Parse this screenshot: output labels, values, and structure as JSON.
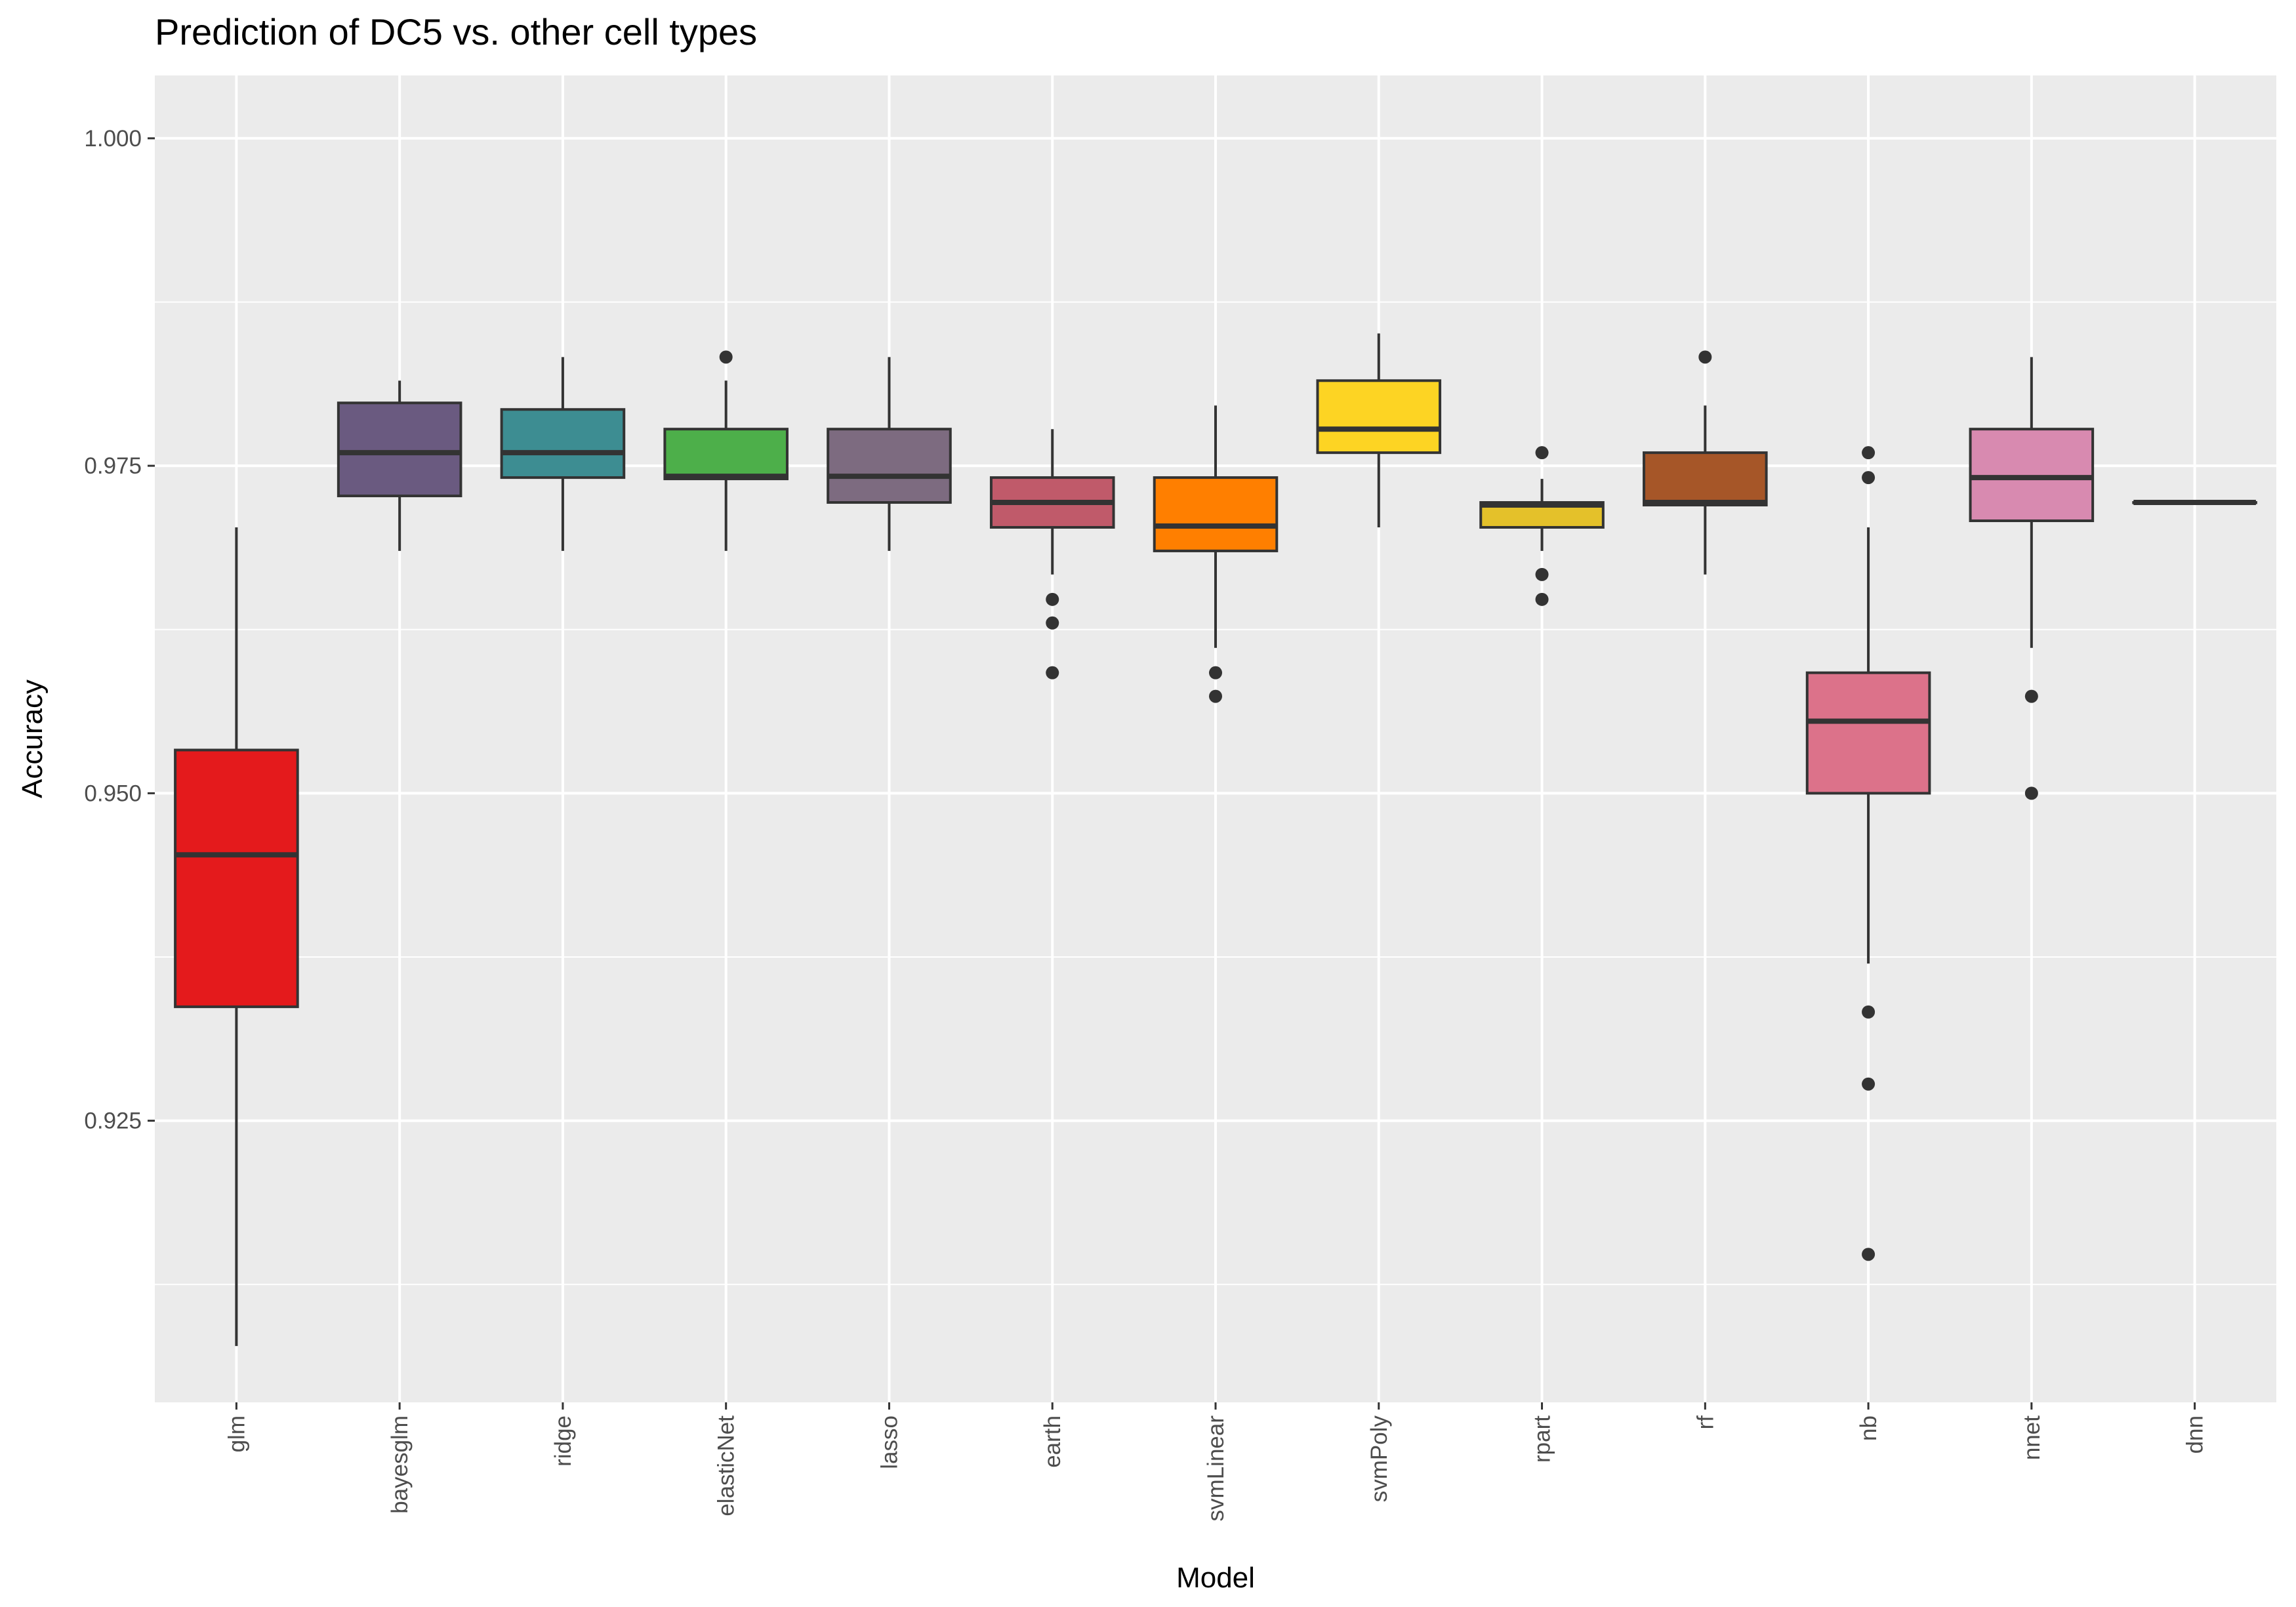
{
  "chart_data": {
    "type": "boxplot",
    "title": "Prediction of DC5 vs. other cell types",
    "xlabel": "Model",
    "ylabel": "Accuracy",
    "ylim": [
      0.9035,
      1.0048
    ],
    "yticks": [
      0.925,
      0.95,
      0.975,
      1.0
    ],
    "ytick_labels": [
      "0.925",
      "0.950",
      "0.975",
      "1.000"
    ],
    "grid": true,
    "legend": "none",
    "background": "#ebebeb",
    "categories": [
      "glm",
      "bayesglm",
      "ridge",
      "elasticNet",
      "lasso",
      "earth",
      "svmLinear",
      "svmPoly",
      "rpart",
      "rf",
      "nb",
      "nnet",
      "dnn"
    ],
    "boxes": [
      {
        "name": "glm",
        "color": "#e41a1c",
        "whisker_low": 0.9078,
        "q1": 0.9337,
        "median": 0.9453,
        "q3": 0.9533,
        "whisker_high": 0.9703,
        "outliers": []
      },
      {
        "name": "bayesglm",
        "color": "#6a5a80",
        "whisker_low": 0.9685,
        "q1": 0.9727,
        "median": 0.976,
        "q3": 0.9798,
        "whisker_high": 0.9815,
        "outliers": []
      },
      {
        "name": "ridge",
        "color": "#3d8d92",
        "whisker_low": 0.9685,
        "q1": 0.9741,
        "median": 0.976,
        "q3": 0.9793,
        "whisker_high": 0.9833,
        "outliers": []
      },
      {
        "name": "elasticNet",
        "color": "#4daf4a",
        "whisker_low": 0.9685,
        "q1": 0.974,
        "median": 0.9742,
        "q3": 0.9778,
        "whisker_high": 0.9815,
        "outliers": [
          0.9833
        ]
      },
      {
        "name": "lasso",
        "color": "#7d6b80",
        "whisker_low": 0.9685,
        "q1": 0.9722,
        "median": 0.9742,
        "q3": 0.9778,
        "whisker_high": 0.9833,
        "outliers": []
      },
      {
        "name": "earth",
        "color": "#c05a6a",
        "whisker_low": 0.9667,
        "q1": 0.9703,
        "median": 0.9722,
        "q3": 0.9741,
        "whisker_high": 0.9778,
        "outliers": [
          0.9648,
          0.963,
          0.9592
        ]
      },
      {
        "name": "svmLinear",
        "color": "#ff7f00",
        "whisker_low": 0.9611,
        "q1": 0.9685,
        "median": 0.9704,
        "q3": 0.9741,
        "whisker_high": 0.9796,
        "outliers": [
          0.9592,
          0.9574
        ]
      },
      {
        "name": "svmPoly",
        "color": "#fdd423",
        "whisker_low": 0.9703,
        "q1": 0.976,
        "median": 0.9778,
        "q3": 0.9815,
        "whisker_high": 0.9851,
        "outliers": []
      },
      {
        "name": "rpart",
        "color": "#e4c12a",
        "whisker_low": 0.9685,
        "q1": 0.9703,
        "median": 0.972,
        "q3": 0.9722,
        "whisker_high": 0.974,
        "outliers": [
          0.976,
          0.9667,
          0.9648
        ]
      },
      {
        "name": "rf",
        "color": "#a65628",
        "whisker_low": 0.9667,
        "q1": 0.972,
        "median": 0.9722,
        "q3": 0.976,
        "whisker_high": 0.9796,
        "outliers": [
          0.9833
        ]
      },
      {
        "name": "nb",
        "color": "#dc728a",
        "whisker_low": 0.937,
        "q1": 0.95,
        "median": 0.9555,
        "q3": 0.9592,
        "whisker_high": 0.9703,
        "outliers": [
          0.976,
          0.9741,
          0.9333,
          0.9278,
          0.9148
        ]
      },
      {
        "name": "nnet",
        "color": "#d88ab0",
        "whisker_low": 0.9611,
        "q1": 0.9708,
        "median": 0.9741,
        "q3": 0.9778,
        "whisker_high": 0.9833,
        "outliers": [
          0.9574,
          0.95
        ]
      },
      {
        "name": "dnn",
        "color": "#9a9a9a",
        "whisker_low": 0.9722,
        "q1": 0.9722,
        "median": 0.9722,
        "q3": 0.9722,
        "whisker_high": 0.9722,
        "outliers": []
      }
    ]
  }
}
